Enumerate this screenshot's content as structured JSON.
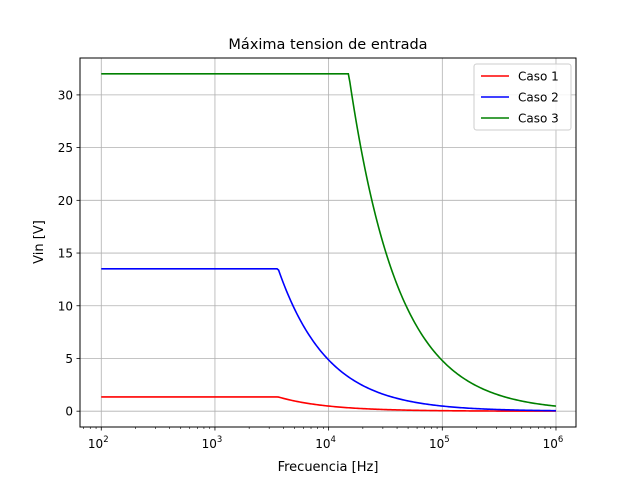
{
  "chart_data": {
    "type": "line",
    "title": "Máxima tension de entrada",
    "xlabel": "Frecuencia [Hz]",
    "ylabel": "Vin [V]",
    "x_scale": "log",
    "xlim": [
      65,
      1500000
    ],
    "ylim": [
      -1.5,
      33.5
    ],
    "x_ticks": [
      100,
      1000,
      10000,
      100000,
      1000000
    ],
    "x_tick_labels": [
      {
        "base": "10",
        "exp": "2"
      },
      {
        "base": "10",
        "exp": "3"
      },
      {
        "base": "10",
        "exp": "4"
      },
      {
        "base": "10",
        "exp": "5"
      },
      {
        "base": "10",
        "exp": "6"
      }
    ],
    "y_ticks": [
      0,
      5,
      10,
      15,
      20,
      25,
      30
    ],
    "y_tick_labels": [
      "0",
      "5",
      "10",
      "15",
      "20",
      "25",
      "30"
    ],
    "grid": true,
    "legend_position": "top-right",
    "series": [
      {
        "name": "Caso 1",
        "color": "#ff0000",
        "plateau": 1.35,
        "corner_hz": 3600,
        "x_end": 1000000
      },
      {
        "name": "Caso 2",
        "color": "#0000ff",
        "plateau": 13.5,
        "corner_hz": 3600,
        "x_end": 1000000
      },
      {
        "name": "Caso 3",
        "color": "#008000",
        "plateau": 32.0,
        "corner_hz": 15000,
        "x_end": 1000000
      }
    ],
    "x_start": 100
  }
}
